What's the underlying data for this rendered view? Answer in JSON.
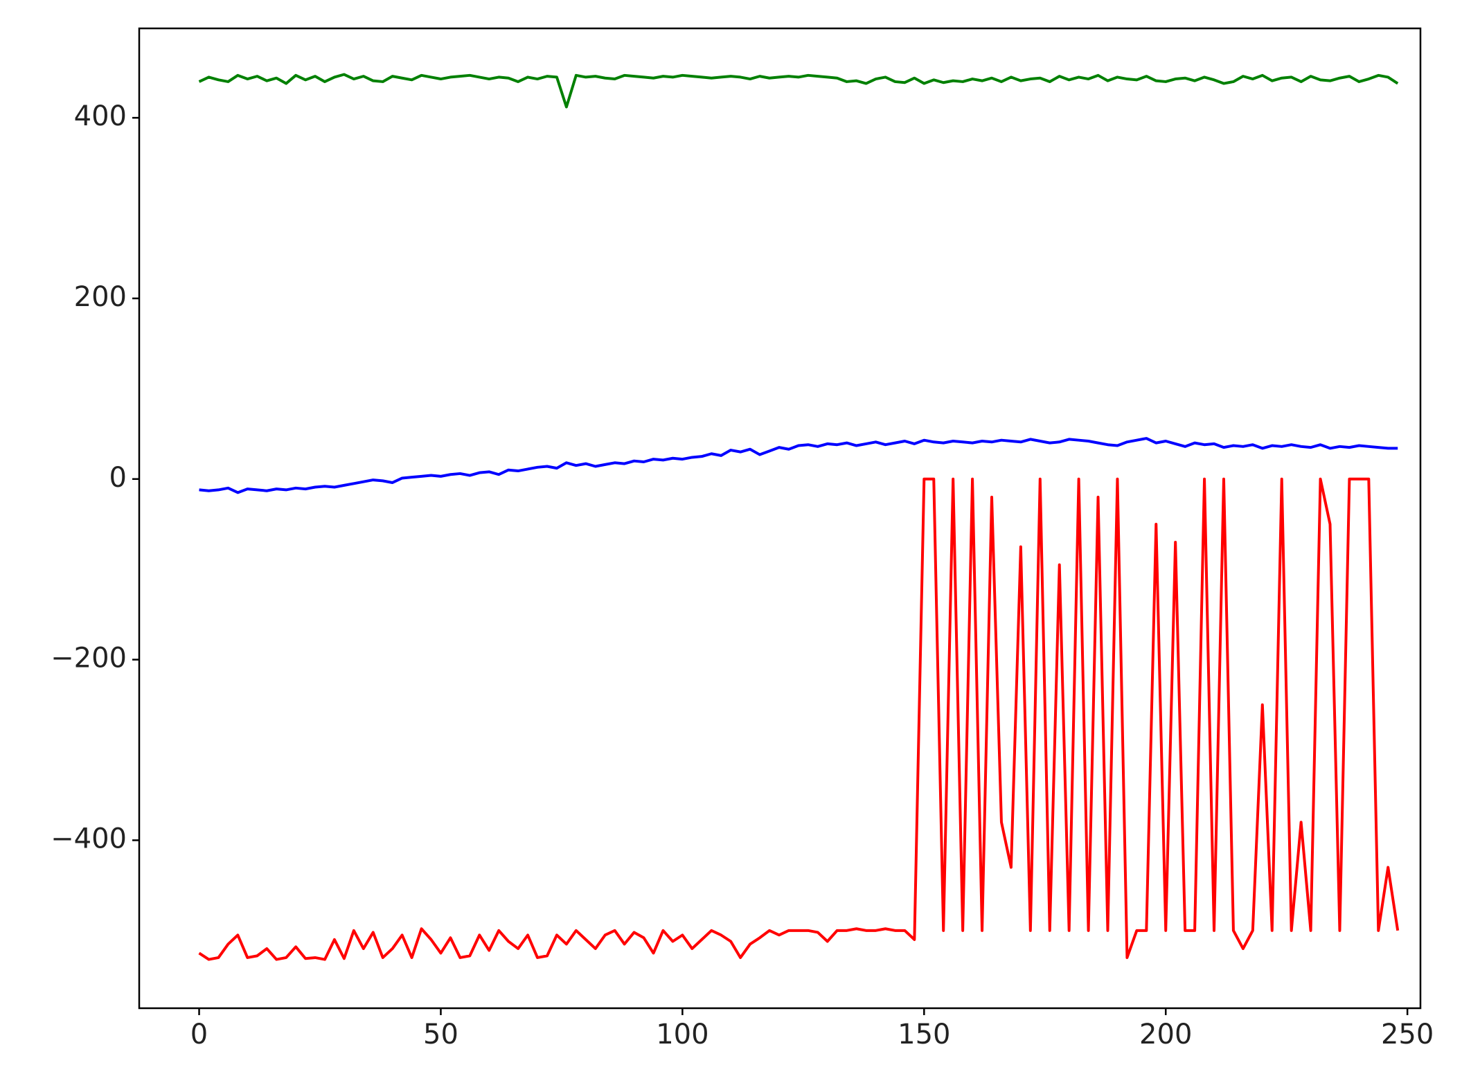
{
  "chart_data": {
    "type": "line",
    "x": [
      0,
      2,
      4,
      6,
      8,
      10,
      12,
      14,
      16,
      18,
      20,
      22,
      24,
      26,
      28,
      30,
      32,
      34,
      36,
      38,
      40,
      42,
      44,
      46,
      48,
      50,
      52,
      54,
      56,
      58,
      60,
      62,
      64,
      66,
      68,
      70,
      72,
      74,
      76,
      78,
      80,
      82,
      84,
      86,
      88,
      90,
      92,
      94,
      96,
      98,
      100,
      102,
      104,
      106,
      108,
      110,
      112,
      114,
      116,
      118,
      120,
      122,
      124,
      126,
      128,
      130,
      132,
      134,
      136,
      138,
      140,
      142,
      144,
      146,
      148,
      150,
      152,
      154,
      156,
      158,
      160,
      162,
      164,
      166,
      168,
      170,
      172,
      174,
      176,
      178,
      180,
      182,
      184,
      186,
      188,
      190,
      192,
      194,
      196,
      198,
      200,
      202,
      204,
      206,
      208,
      210,
      212,
      214,
      216,
      218,
      220,
      222,
      224,
      226,
      228,
      230,
      232,
      234,
      236,
      238,
      240,
      242,
      244,
      246,
      248
    ],
    "series": [
      {
        "color": "#008000",
        "values": [
          440,
          445,
          442,
          440,
          447,
          443,
          446,
          441,
          444,
          438,
          447,
          442,
          446,
          440,
          445,
          448,
          443,
          446,
          441,
          440,
          446,
          444,
          442,
          447,
          445,
          443,
          445,
          446,
          447,
          445,
          443,
          445,
          444,
          440,
          445,
          443,
          446,
          445,
          412,
          447,
          445,
          446,
          444,
          443,
          447,
          446,
          445,
          444,
          446,
          445,
          447,
          446,
          445,
          444,
          445,
          446,
          445,
          443,
          446,
          444,
          445,
          446,
          445,
          447,
          446,
          445,
          444,
          440,
          441,
          438,
          443,
          445,
          440,
          439,
          444,
          438,
          442,
          439,
          441,
          440,
          443,
          441,
          444,
          440,
          445,
          441,
          443,
          444,
          440,
          446,
          442,
          445,
          443,
          447,
          441,
          445,
          443,
          442,
          446,
          441,
          440,
          443,
          444,
          441,
          445,
          442,
          438,
          440,
          446,
          443,
          447,
          441,
          444,
          445,
          440,
          446,
          442,
          441,
          444,
          446,
          440,
          443,
          447,
          445,
          438
        ]
      },
      {
        "color": "#0000ff",
        "values": [
          -12,
          -13,
          -12,
          -10,
          -15,
          -11,
          -12,
          -13,
          -11,
          -12,
          -10,
          -11,
          -9,
          -8,
          -9,
          -7,
          -5,
          -3,
          -1,
          -2,
          -4,
          1,
          2,
          3,
          4,
          3,
          5,
          6,
          4,
          7,
          8,
          5,
          10,
          9,
          11,
          13,
          14,
          12,
          18,
          15,
          17,
          14,
          16,
          18,
          17,
          20,
          19,
          22,
          21,
          23,
          22,
          24,
          25,
          28,
          26,
          32,
          30,
          33,
          27,
          31,
          35,
          33,
          37,
          38,
          36,
          39,
          38,
          40,
          37,
          39,
          41,
          38,
          40,
          42,
          39,
          43,
          41,
          40,
          42,
          41,
          40,
          42,
          41,
          43,
          42,
          41,
          44,
          42,
          40,
          41,
          44,
          43,
          42,
          40,
          38,
          37,
          41,
          43,
          45,
          40,
          42,
          39,
          36,
          40,
          38,
          39,
          35,
          37,
          36,
          38,
          34,
          37,
          36,
          38,
          36,
          35,
          38,
          34,
          36,
          35,
          37,
          36,
          35,
          34,
          34
        ]
      },
      {
        "color": "#ff0000",
        "values": [
          -525,
          -532,
          -530,
          -515,
          -505,
          -530,
          -528,
          -520,
          -532,
          -530,
          -518,
          -531,
          -530,
          -532,
          -510,
          -531,
          -500,
          -520,
          -502,
          -530,
          -520,
          -505,
          -530,
          -498,
          -510,
          -525,
          -508,
          -530,
          -528,
          -505,
          -522,
          -500,
          -512,
          -520,
          -505,
          -530,
          -528,
          -505,
          -515,
          -500,
          -510,
          -520,
          -505,
          -500,
          -515,
          -502,
          -508,
          -525,
          -500,
          -512,
          -505,
          -520,
          -510,
          -500,
          -505,
          -512,
          -530,
          -515,
          -508,
          -500,
          -505,
          -500,
          -500,
          -500,
          -502,
          -512,
          -500,
          -500,
          -498,
          -500,
          -500,
          -498,
          -500,
          -500,
          -510,
          0,
          0,
          -500,
          0,
          -500,
          0,
          -500,
          -20,
          -380,
          -430,
          -75,
          -500,
          0,
          -500,
          -95,
          -500,
          0,
          -500,
          -20,
          -500,
          0,
          -530,
          -500,
          -500,
          -50,
          -500,
          -70,
          -500,
          -500,
          0,
          -500,
          0,
          -500,
          -520,
          -500,
          -250,
          -500,
          0,
          -500,
          -380,
          -500,
          0,
          -50,
          -500,
          0,
          0,
          0,
          -500,
          -430,
          -500
        ]
      }
    ],
    "xlim": [
      -12.4,
      252.7
    ],
    "ylim": [
      -586,
      499
    ],
    "xticks": [
      0,
      50,
      100,
      150,
      200,
      250
    ],
    "yticks": [
      {
        "value": -400,
        "label": "−400"
      },
      {
        "value": -200,
        "label": "−200"
      },
      0,
      200,
      400
    ]
  }
}
